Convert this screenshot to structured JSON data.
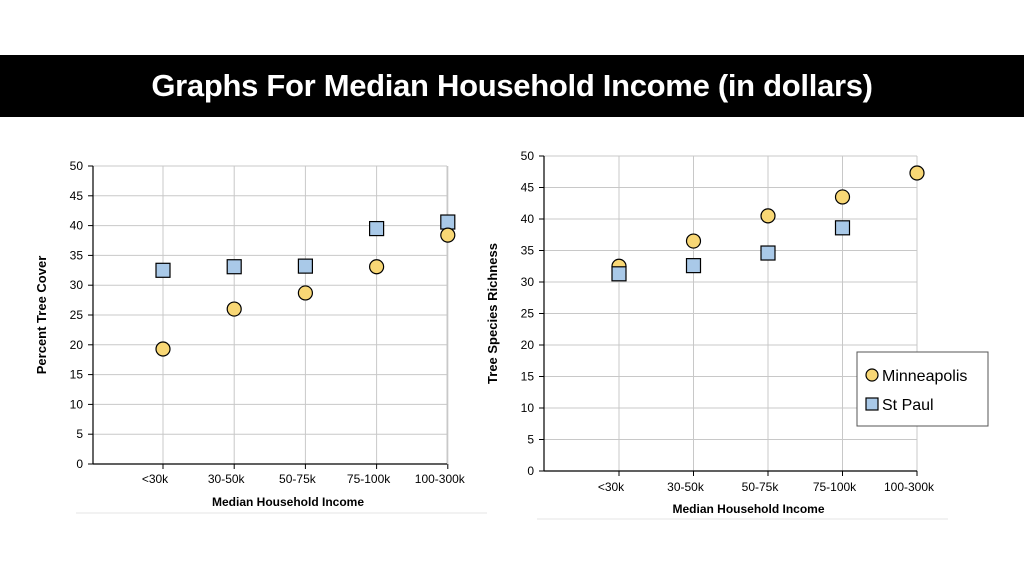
{
  "header": {
    "title": "Graphs For Median Household Income (in dollars)"
  },
  "colors": {
    "minneapolis": "#f8d775",
    "st_paul": "#a9c9e8",
    "grid": "#c8c8c8",
    "title_bar": "#000000"
  },
  "legend": {
    "items": [
      {
        "label": "Minneapolis",
        "marker": "circle",
        "color": "#f8d775"
      },
      {
        "label": "St Paul",
        "marker": "square",
        "color": "#a9c9e8"
      }
    ]
  },
  "chart_data": [
    {
      "type": "scatter",
      "title": "",
      "categories": [
        "<30k",
        "30-50k",
        "50-75k",
        "75-100k",
        "100-300k"
      ],
      "xlabel": "Median Household Income",
      "ylabel": "Percent Tree Cover",
      "ylim": [
        0,
        50
      ],
      "yticks": [
        0,
        5,
        10,
        15,
        20,
        25,
        30,
        35,
        40,
        45,
        50
      ],
      "grid": true,
      "series": [
        {
          "name": "Minneapolis",
          "marker": "circle",
          "color": "#f8d775",
          "values": [
            19.3,
            26.0,
            28.7,
            33.1,
            38.4
          ]
        },
        {
          "name": "St Paul",
          "marker": "square",
          "color": "#a9c9e8",
          "values": [
            32.5,
            33.1,
            33.2,
            39.5,
            40.6
          ]
        }
      ]
    },
    {
      "type": "scatter",
      "title": "",
      "categories": [
        "<30k",
        "30-50k",
        "50-75k",
        "75-100k",
        "100-300k"
      ],
      "xlabel": "Median Household Income",
      "ylabel": "Tree Species Richness",
      "ylim": [
        0,
        50
      ],
      "yticks": [
        0,
        5,
        10,
        15,
        20,
        25,
        30,
        35,
        40,
        45,
        50
      ],
      "grid": true,
      "legend_position": "bottom-right",
      "series": [
        {
          "name": "Minneapolis",
          "marker": "circle",
          "color": "#f8d775",
          "values": [
            32.5,
            36.5,
            40.5,
            43.5,
            47.3
          ]
        },
        {
          "name": "St Paul",
          "marker": "square",
          "color": "#a9c9e8",
          "values": [
            31.3,
            32.6,
            34.6,
            38.6,
            null
          ]
        }
      ]
    }
  ]
}
